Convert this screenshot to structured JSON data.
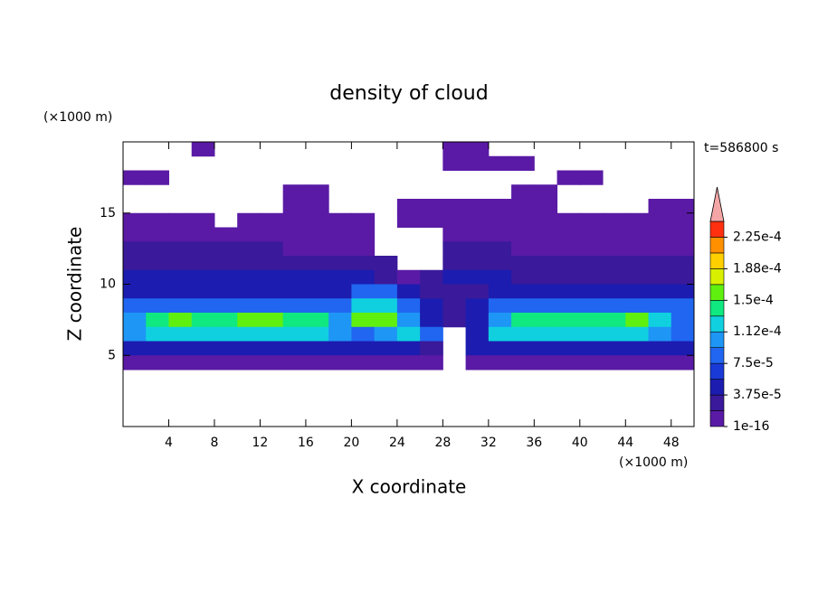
{
  "chart_data": {
    "type": "contour",
    "title": "density of cloud",
    "time_label": "t=586800 s",
    "x_label": "X coordinate",
    "y_label": "Z coordinate",
    "x_unit": "(×1000 m)",
    "y_unit": "(×1000 m)",
    "xlim": [
      0,
      50
    ],
    "ylim": [
      0,
      20
    ],
    "xticks": [
      4,
      8,
      12,
      16,
      20,
      24,
      28,
      32,
      36,
      40,
      44,
      48
    ],
    "yticks": [
      5,
      10,
      15
    ],
    "x": [
      1,
      3,
      5,
      7,
      9,
      11,
      13,
      15,
      17,
      19,
      21,
      23,
      25,
      27,
      29,
      31,
      33,
      35,
      37,
      39,
      41,
      43,
      45,
      47,
      49
    ],
    "z": [
      19.5,
      18.5,
      17.5,
      16.5,
      15.5,
      14.5,
      13.5,
      12.5,
      11.5,
      10.5,
      9.5,
      8.5,
      7.5,
      6.5,
      5.5,
      4.5
    ],
    "values": [
      [
        null,
        null,
        null,
        1e-05,
        null,
        null,
        null,
        null,
        null,
        null,
        null,
        null,
        null,
        null,
        1e-05,
        1e-05,
        null,
        null,
        null,
        null,
        null,
        null,
        null,
        null,
        null
      ],
      [
        null,
        null,
        null,
        null,
        null,
        null,
        null,
        null,
        null,
        null,
        null,
        null,
        null,
        null,
        1e-05,
        1e-05,
        1e-05,
        1e-05,
        null,
        null,
        null,
        null,
        null,
        null,
        null
      ],
      [
        1e-05,
        1e-05,
        null,
        null,
        null,
        null,
        null,
        null,
        null,
        null,
        null,
        null,
        null,
        null,
        null,
        null,
        null,
        null,
        null,
        1e-05,
        1e-05,
        null,
        null,
        null,
        null
      ],
      [
        null,
        null,
        null,
        null,
        null,
        null,
        null,
        1e-05,
        1e-05,
        null,
        null,
        null,
        null,
        null,
        null,
        null,
        null,
        1e-05,
        1e-05,
        null,
        null,
        null,
        null,
        null,
        null
      ],
      [
        null,
        null,
        null,
        null,
        null,
        null,
        null,
        1e-05,
        1e-05,
        null,
        null,
        null,
        1e-05,
        1e-05,
        1e-05,
        1e-05,
        1e-05,
        1e-05,
        1e-05,
        null,
        null,
        null,
        null,
        1e-05,
        1e-05
      ],
      [
        1e-05,
        1e-05,
        1e-05,
        1e-05,
        null,
        1e-05,
        1e-05,
        1e-05,
        1e-05,
        1e-05,
        1e-05,
        null,
        1e-05,
        1e-05,
        1e-05,
        1e-05,
        1e-05,
        1e-05,
        1e-05,
        1e-05,
        1e-05,
        1e-05,
        1e-05,
        1e-05,
        1e-05
      ],
      [
        1e-05,
        1e-05,
        1e-05,
        1e-05,
        1e-05,
        1e-05,
        1e-05,
        1e-05,
        1e-05,
        1e-05,
        1e-05,
        null,
        null,
        null,
        1e-05,
        1e-05,
        1e-05,
        1e-05,
        1e-05,
        1e-05,
        1e-05,
        1e-05,
        1e-05,
        1e-05,
        1e-05
      ],
      [
        3e-05,
        3e-05,
        3e-05,
        3e-05,
        3e-05,
        3e-05,
        3e-05,
        1e-05,
        1e-05,
        1e-05,
        1e-05,
        null,
        null,
        null,
        3e-05,
        3e-05,
        3e-05,
        1e-05,
        1e-05,
        1e-05,
        1e-05,
        1e-05,
        1e-05,
        1e-05,
        1e-05
      ],
      [
        3e-05,
        3e-05,
        3e-05,
        3e-05,
        3e-05,
        3e-05,
        3e-05,
        3e-05,
        3e-05,
        3e-05,
        3e-05,
        3e-05,
        null,
        null,
        3e-05,
        3e-05,
        3e-05,
        3e-05,
        3e-05,
        3e-05,
        3e-05,
        3e-05,
        3e-05,
        3e-05,
        3e-05
      ],
      [
        5e-05,
        5e-05,
        5e-05,
        5e-05,
        5e-05,
        5e-05,
        5e-05,
        5e-05,
        5e-05,
        5e-05,
        5e-05,
        3e-05,
        1e-05,
        3e-05,
        5e-05,
        5e-05,
        5e-05,
        3e-05,
        3e-05,
        3e-05,
        3e-05,
        3e-05,
        3e-05,
        3e-05,
        3e-05
      ],
      [
        5e-05,
        5e-05,
        5e-05,
        5e-05,
        5e-05,
        5e-05,
        5e-05,
        5e-05,
        5e-05,
        5e-05,
        8e-05,
        8e-05,
        5e-05,
        3e-05,
        3e-05,
        3e-05,
        5e-05,
        5e-05,
        5e-05,
        5e-05,
        5e-05,
        5e-05,
        5e-05,
        5e-05,
        5e-05
      ],
      [
        8e-05,
        8e-05,
        8e-05,
        8e-05,
        8e-05,
        8e-05,
        8e-05,
        8e-05,
        8e-05,
        8e-05,
        0.00012,
        0.00012,
        8e-05,
        5e-05,
        3e-05,
        5e-05,
        8e-05,
        8e-05,
        8e-05,
        8e-05,
        8e-05,
        8e-05,
        8e-05,
        8e-05,
        8e-05
      ],
      [
        0.0001,
        0.00014,
        0.00016,
        0.00014,
        0.00014,
        0.00016,
        0.00016,
        0.00014,
        0.00014,
        0.0001,
        0.00015,
        0.00015,
        0.0001,
        5e-05,
        3e-05,
        5e-05,
        0.0001,
        0.00014,
        0.00014,
        0.00014,
        0.00014,
        0.00014,
        0.00016,
        0.00012,
        8e-05
      ],
      [
        0.0001,
        0.00012,
        0.00012,
        0.00012,
        0.00012,
        0.00012,
        0.00012,
        0.00012,
        0.00012,
        0.0001,
        8e-05,
        0.0001,
        0.00012,
        8e-05,
        null,
        5e-05,
        0.00012,
        0.00012,
        0.00012,
        0.00012,
        0.00012,
        0.00012,
        0.00012,
        0.0001,
        8e-05
      ],
      [
        5e-05,
        5e-05,
        5e-05,
        5e-05,
        5e-05,
        5e-05,
        5e-05,
        5e-05,
        5e-05,
        5e-05,
        5e-05,
        5e-05,
        5e-05,
        3e-05,
        null,
        5e-05,
        5e-05,
        5e-05,
        5e-05,
        5e-05,
        5e-05,
        5e-05,
        5e-05,
        5e-05,
        5e-05
      ],
      [
        1e-05,
        1e-05,
        1e-05,
        1e-05,
        1e-05,
        1e-05,
        1e-05,
        1e-05,
        1e-05,
        1e-05,
        1e-05,
        1e-05,
        1e-05,
        1e-05,
        null,
        1e-05,
        1e-05,
        1e-05,
        1e-05,
        1e-05,
        1e-05,
        1e-05,
        1e-05,
        1e-05,
        1e-05
      ]
    ],
    "levels": [
      1e-16,
      1.875e-05,
      3.75e-05,
      5.625e-05,
      7.5e-05,
      9.375e-05,
      0.0001125,
      0.00013125,
      0.00015,
      0.00016875,
      0.0001875,
      0.00020625,
      0.000225,
      0.00024375
    ],
    "colors": [
      "#5a1aa5",
      "#3a1a9a",
      "#1c1cb0",
      "#1a3ad8",
      "#2066f0",
      "#1e96f5",
      "#10d0e0",
      "#10e880",
      "#60f010",
      "#d8f000",
      "#ffd000",
      "#ff9000",
      "#ff3010"
    ],
    "over_color": "#f4a6a6",
    "colorbar_ticks": [
      1e-16,
      {
        "value": 3.75e-05,
        "label": "3.75e-5"
      },
      {
        "value": 7.5e-05,
        "label": "7.5e-5"
      },
      {
        "value": 0.0001125,
        "label": "1.12e-4"
      },
      {
        "value": 0.00015,
        "label": "1.5e-4"
      },
      {
        "value": 0.0001875,
        "label": "1.88e-4"
      },
      {
        "value": 0.000225,
        "label": "2.25e-4"
      }
    ]
  }
}
